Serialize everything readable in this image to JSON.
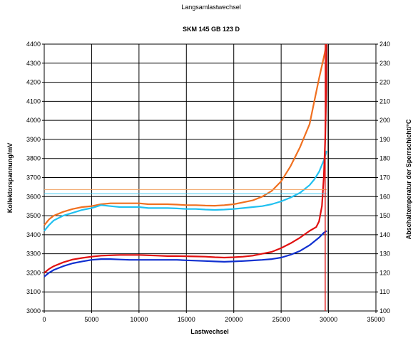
{
  "chart_data": {
    "type": "line",
    "title": "Langsamlastwechsel",
    "subtitle": "SKM 145 GB 123 D",
    "xlabel": "Lastwechsel",
    "ylabel_left": "Kollektorspannung/mV",
    "ylabel_right": "Abschaltemperatur der Sperrschicht/°C",
    "xlim": [
      0,
      35000
    ],
    "ylim_left": [
      3000,
      4400
    ],
    "ylim_right": [
      100,
      240
    ],
    "x_ticks": [
      "0",
      "5000",
      "10000",
      "15000",
      "20000",
      "25000",
      "30000",
      "35000"
    ],
    "y_left_ticks": [
      "3000",
      "3100",
      "3200",
      "3300",
      "3400",
      "3500",
      "3600",
      "3700",
      "3800",
      "3900",
      "4000",
      "4100",
      "4200",
      "4300",
      "4400"
    ],
    "y_right_ticks": [
      "100",
      "110",
      "120",
      "130",
      "140",
      "150",
      "160",
      "170",
      "180",
      "190",
      "200",
      "210",
      "220",
      "230",
      "240"
    ],
    "grid": true,
    "series": [
      {
        "axis": "left",
        "color": "#f07020",
        "points": [
          [
            0,
            3450
          ],
          [
            500,
            3480
          ],
          [
            1000,
            3500
          ],
          [
            2000,
            3520
          ],
          [
            3000,
            3535
          ],
          [
            4000,
            3545
          ],
          [
            5000,
            3550
          ],
          [
            6000,
            3560
          ],
          [
            7000,
            3565
          ],
          [
            8000,
            3565
          ],
          [
            9000,
            3565
          ],
          [
            10000,
            3565
          ],
          [
            11000,
            3560
          ],
          [
            12000,
            3560
          ],
          [
            13000,
            3560
          ],
          [
            14000,
            3558
          ],
          [
            15000,
            3555
          ],
          [
            16000,
            3555
          ],
          [
            17000,
            3553
          ],
          [
            18000,
            3552
          ],
          [
            19000,
            3555
          ],
          [
            20000,
            3560
          ],
          [
            21000,
            3570
          ],
          [
            22000,
            3580
          ],
          [
            23000,
            3600
          ],
          [
            24000,
            3630
          ],
          [
            25000,
            3680
          ],
          [
            26000,
            3760
          ],
          [
            27000,
            3860
          ],
          [
            28000,
            3980
          ],
          [
            28500,
            4100
          ],
          [
            29000,
            4220
          ],
          [
            29500,
            4330
          ],
          [
            29800,
            4400
          ]
        ]
      },
      {
        "axis": "left",
        "color": "#20c0f0",
        "points": [
          [
            0,
            3420
          ],
          [
            500,
            3450
          ],
          [
            1000,
            3475
          ],
          [
            2000,
            3500
          ],
          [
            3000,
            3515
          ],
          [
            4000,
            3530
          ],
          [
            5000,
            3540
          ],
          [
            6000,
            3555
          ],
          [
            7000,
            3550
          ],
          [
            8000,
            3545
          ],
          [
            9000,
            3545
          ],
          [
            10000,
            3545
          ],
          [
            11000,
            3540
          ],
          [
            12000,
            3540
          ],
          [
            13000,
            3540
          ],
          [
            14000,
            3538
          ],
          [
            15000,
            3535
          ],
          [
            16000,
            3535
          ],
          [
            17000,
            3532
          ],
          [
            18000,
            3530
          ],
          [
            19000,
            3532
          ],
          [
            20000,
            3535
          ],
          [
            21000,
            3540
          ],
          [
            22000,
            3545
          ],
          [
            23000,
            3550
          ],
          [
            24000,
            3560
          ],
          [
            25000,
            3575
          ],
          [
            26000,
            3595
          ],
          [
            27000,
            3620
          ],
          [
            28000,
            3660
          ],
          [
            28500,
            3690
          ],
          [
            29000,
            3730
          ],
          [
            29500,
            3790
          ],
          [
            29800,
            3840
          ]
        ]
      },
      {
        "axis": "left",
        "color": "#e01010",
        "points": [
          [
            0,
            3200
          ],
          [
            500,
            3220
          ],
          [
            1000,
            3235
          ],
          [
            2000,
            3255
          ],
          [
            3000,
            3270
          ],
          [
            4000,
            3278
          ],
          [
            5000,
            3285
          ],
          [
            6000,
            3290
          ],
          [
            7000,
            3292
          ],
          [
            8000,
            3294
          ],
          [
            9000,
            3294
          ],
          [
            10000,
            3294
          ],
          [
            11000,
            3292
          ],
          [
            12000,
            3290
          ],
          [
            13000,
            3288
          ],
          [
            14000,
            3288
          ],
          [
            15000,
            3287
          ],
          [
            16000,
            3286
          ],
          [
            17000,
            3285
          ],
          [
            18000,
            3282
          ],
          [
            19000,
            3280
          ],
          [
            20000,
            3282
          ],
          [
            21000,
            3285
          ],
          [
            22000,
            3290
          ],
          [
            23000,
            3300
          ],
          [
            24000,
            3310
          ],
          [
            25000,
            3330
          ],
          [
            26000,
            3355
          ],
          [
            27000,
            3385
          ],
          [
            28000,
            3420
          ],
          [
            28700,
            3440
          ],
          [
            29000,
            3470
          ],
          [
            29300,
            3550
          ],
          [
            29500,
            3700
          ],
          [
            29650,
            3900
          ],
          [
            29750,
            4150
          ],
          [
            29800,
            4400
          ]
        ]
      },
      {
        "axis": "left",
        "color": "#1030d0",
        "points": [
          [
            0,
            3180
          ],
          [
            500,
            3200
          ],
          [
            1000,
            3215
          ],
          [
            2000,
            3235
          ],
          [
            3000,
            3250
          ],
          [
            4000,
            3260
          ],
          [
            5000,
            3268
          ],
          [
            6000,
            3272
          ],
          [
            7000,
            3272
          ],
          [
            8000,
            3270
          ],
          [
            9000,
            3268
          ],
          [
            10000,
            3268
          ],
          [
            11000,
            3268
          ],
          [
            12000,
            3268
          ],
          [
            13000,
            3268
          ],
          [
            14000,
            3268
          ],
          [
            15000,
            3266
          ],
          [
            16000,
            3264
          ],
          [
            17000,
            3262
          ],
          [
            18000,
            3260
          ],
          [
            19000,
            3258
          ],
          [
            20000,
            3260
          ],
          [
            21000,
            3262
          ],
          [
            22000,
            3265
          ],
          [
            23000,
            3268
          ],
          [
            24000,
            3272
          ],
          [
            25000,
            3280
          ],
          [
            26000,
            3295
          ],
          [
            27000,
            3315
          ],
          [
            28000,
            3345
          ],
          [
            29000,
            3385
          ],
          [
            29500,
            3410
          ],
          [
            29800,
            3420
          ]
        ]
      },
      {
        "axis": "left",
        "color": "#f0a060",
        "points": [
          [
            0,
            3637
          ],
          [
            29800,
            3637
          ]
        ]
      },
      {
        "axis": "left",
        "color": "#40c8f0",
        "points": [
          [
            0,
            3615
          ],
          [
            29800,
            3615
          ]
        ]
      }
    ],
    "vlines": [
      {
        "x": 29650,
        "color": "#e01010"
      },
      {
        "x": 29900,
        "color": "#7a7a7a"
      }
    ]
  }
}
